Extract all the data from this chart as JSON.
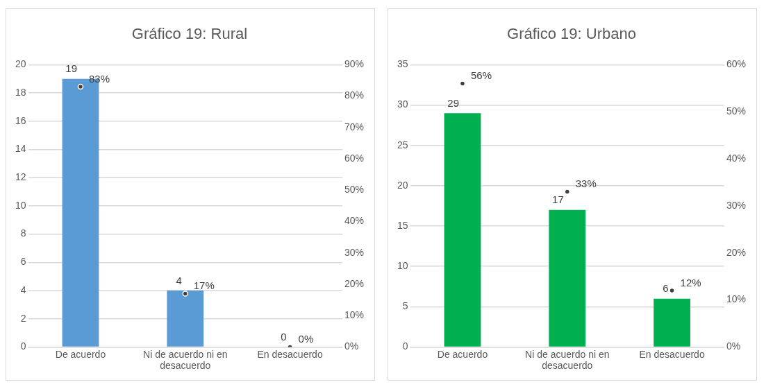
{
  "chart_data": [
    {
      "type": "bar",
      "title": "Gráfico 19: Rural",
      "categories": [
        "De acuerdo",
        "Ni de acuerdo ni en desacuerdo",
        "En desacuerdo"
      ],
      "series": [
        {
          "color": "#5b9bd5",
          "values": [
            19,
            4,
            0
          ],
          "value_labels": [
            "19",
            "4",
            "0"
          ]
        },
        {
          "type": "scatter",
          "axis": "y2",
          "marker": "circle",
          "values": [
            83,
            17,
            0
          ],
          "value_labels": [
            "83%",
            "17%",
            "0%"
          ]
        }
      ],
      "ylim": [
        0,
        20
      ],
      "yticks": [
        0,
        2,
        4,
        6,
        8,
        10,
        12,
        14,
        16,
        18,
        20
      ],
      "y2lim": [
        0,
        90
      ],
      "y2ticks": [
        {
          "value": 0,
          "label": "0%"
        },
        {
          "value": 10,
          "label": "10%"
        },
        {
          "value": 20,
          "label": "20%"
        },
        {
          "value": 30,
          "label": "30%"
        },
        {
          "value": 40,
          "label": "40%"
        },
        {
          "value": 50,
          "label": "50%"
        },
        {
          "value": 60,
          "label": "60%"
        },
        {
          "value": 70,
          "label": "70%"
        },
        {
          "value": 80,
          "label": "80%"
        },
        {
          "value": 90,
          "label": "90%"
        }
      ],
      "grid": "y",
      "legend": false
    },
    {
      "type": "bar",
      "title": "Gráfico 19: Urbano",
      "categories": [
        "De acuerdo",
        "Ni de acuerdo ni en desacuerdo",
        "En desacuerdo"
      ],
      "series": [
        {
          "color": "#00b050",
          "values": [
            29,
            17,
            6
          ],
          "value_labels": [
            "29",
            "17",
            "6"
          ]
        },
        {
          "type": "scatter",
          "axis": "y2",
          "marker": "circle",
          "values": [
            56,
            33,
            12
          ],
          "value_labels": [
            "56%",
            "33%",
            "12%"
          ]
        }
      ],
      "ylim": [
        0,
        35
      ],
      "yticks": [
        0,
        5,
        10,
        15,
        20,
        25,
        30,
        35
      ],
      "y2lim": [
        0,
        60
      ],
      "y2ticks": [
        {
          "value": 0,
          "label": "0%"
        },
        {
          "value": 10,
          "label": "10%"
        },
        {
          "value": 20,
          "label": "20%"
        },
        {
          "value": 30,
          "label": "30%"
        },
        {
          "value": 40,
          "label": "40%"
        },
        {
          "value": 50,
          "label": "50%"
        },
        {
          "value": 60,
          "label": "60%"
        }
      ],
      "grid": "y",
      "legend": false
    }
  ]
}
